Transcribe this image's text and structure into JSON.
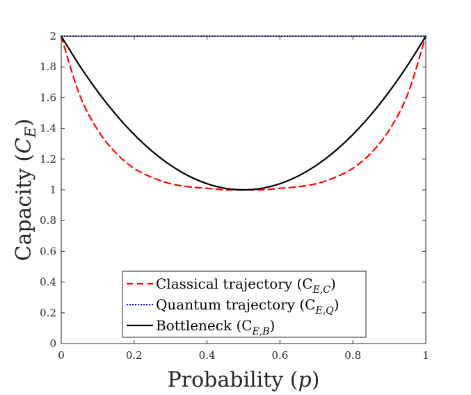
{
  "chart_data": {
    "type": "line",
    "xlabel": "Probability (p)",
    "ylabel": "Capacity (C_E)",
    "xlim": [
      0,
      1
    ],
    "ylim": [
      0,
      2
    ],
    "x_ticks": [
      0,
      0.2,
      0.4,
      0.6,
      0.8,
      1
    ],
    "y_ticks": [
      0,
      0.2,
      0.4,
      0.6,
      0.8,
      1,
      1.2,
      1.4,
      1.6,
      1.8,
      2
    ],
    "x_tick_labels": [
      "0",
      "0.2",
      "0.4",
      "0.6",
      "0.8",
      "1"
    ],
    "y_tick_labels": [
      "0",
      "0.2",
      "0.4",
      "0.6",
      "0.8",
      "1",
      "1.2",
      "1.4",
      "1.6",
      "1.8",
      "2"
    ],
    "grid": false,
    "legend_position": "bottom-center",
    "x": [
      0,
      0.05,
      0.1,
      0.15,
      0.2,
      0.25,
      0.3,
      0.35,
      0.4,
      0.45,
      0.5,
      0.55,
      0.6,
      0.65,
      0.7,
      0.75,
      0.8,
      0.85,
      0.9,
      0.95,
      1
    ],
    "series": [
      {
        "name": "Classical trajectory (C_{E,C})",
        "legend_main": "Classical trajectory (C",
        "legend_sub": "E,C",
        "legend_close": ")",
        "color": "#ff0000",
        "style": "dashed",
        "values": [
          2,
          1.62,
          1.39,
          1.24,
          1.14,
          1.08,
          1.04,
          1.02,
          1.01,
          1.0,
          1.0,
          1.0,
          1.01,
          1.02,
          1.04,
          1.08,
          1.14,
          1.24,
          1.39,
          1.62,
          2
        ]
      },
      {
        "name": "Quantum trajectory (C_{E,Q})",
        "legend_main": "Quantum trajectory (C",
        "legend_sub": "E,Q",
        "legend_close": ")",
        "color": "#0000ff",
        "style": "dotted",
        "values": [
          2,
          2,
          2,
          2,
          2,
          2,
          2,
          2,
          2,
          2,
          2,
          2,
          2,
          2,
          2,
          2,
          2,
          2,
          2,
          2,
          2
        ]
      },
      {
        "name": "Bottleneck (C_{E,B})",
        "legend_main": "Bottleneck (C",
        "legend_sub": "E,B",
        "legend_close": ")",
        "color": "#000000",
        "style": "solid",
        "values": [
          2,
          1.81,
          1.64,
          1.49,
          1.36,
          1.25,
          1.16,
          1.09,
          1.04,
          1.01,
          1.0,
          1.01,
          1.04,
          1.09,
          1.16,
          1.25,
          1.36,
          1.49,
          1.64,
          1.81,
          2
        ]
      }
    ]
  }
}
